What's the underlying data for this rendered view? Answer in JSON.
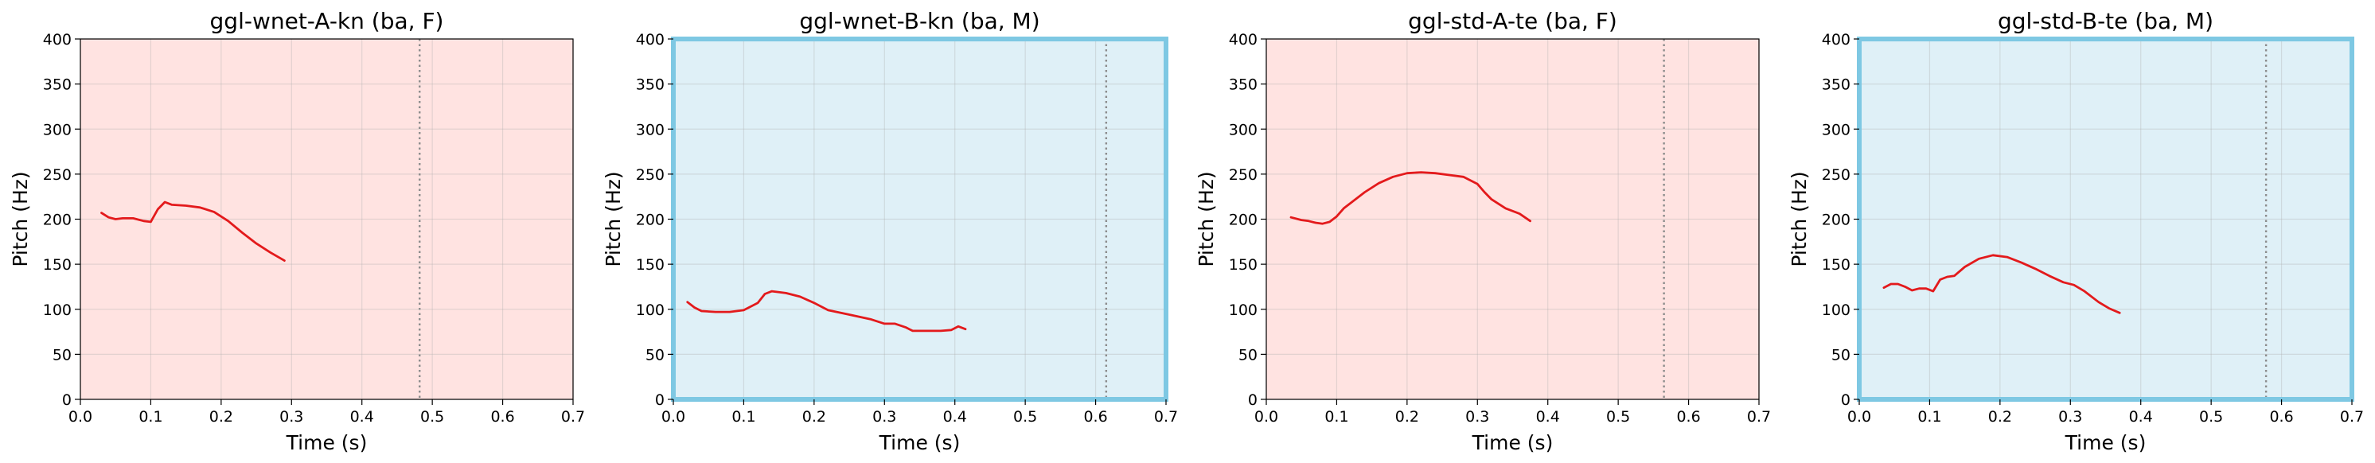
{
  "chart_data": [
    {
      "type": "line",
      "title": "ggl-wnet-A-kn (ba, F)",
      "xlabel": "Time (s)",
      "ylabel": "Pitch (Hz)",
      "xlim": [
        0,
        0.7
      ],
      "ylim": [
        0,
        400
      ],
      "xticks": [
        "0.0",
        "0.1",
        "0.2",
        "0.3",
        "0.4",
        "0.5",
        "0.6",
        "0.7"
      ],
      "yticks": [
        "0",
        "50",
        "100",
        "150",
        "200",
        "250",
        "300",
        "350",
        "400"
      ],
      "grid": true,
      "background": "#ffe3e1",
      "line_color": "#e31a1c",
      "vline_color": "#8c8c8c",
      "highlight_border": false,
      "vline_x": 0.482,
      "series": [
        {
          "x": [
            0.03,
            0.04,
            0.05,
            0.06,
            0.075,
            0.09,
            0.1,
            0.11,
            0.12,
            0.13,
            0.15,
            0.17,
            0.19,
            0.21,
            0.23,
            0.25,
            0.27,
            0.29
          ],
          "y": [
            207,
            202,
            200,
            201,
            201,
            198,
            197,
            211,
            219,
            216,
            215,
            213,
            208,
            198,
            185,
            173,
            163,
            154
          ]
        }
      ]
    },
    {
      "type": "line",
      "title": "ggl-wnet-B-kn (ba, M)",
      "xlabel": "Time (s)",
      "ylabel": "Pitch (Hz)",
      "xlim": [
        0,
        0.7
      ],
      "ylim": [
        0,
        400
      ],
      "xticks": [
        "0.0",
        "0.1",
        "0.2",
        "0.3",
        "0.4",
        "0.5",
        "0.6",
        "0.7"
      ],
      "yticks": [
        "0",
        "50",
        "100",
        "150",
        "200",
        "250",
        "300",
        "350",
        "400"
      ],
      "grid": true,
      "background": "#dff0f7",
      "line_color": "#e31a1c",
      "vline_color": "#8c8c8c",
      "highlight_border": true,
      "border_color": "#7ec8e3",
      "vline_x": 0.615,
      "series": [
        {
          "x": [
            0.02,
            0.03,
            0.04,
            0.06,
            0.08,
            0.1,
            0.12,
            0.13,
            0.14,
            0.16,
            0.18,
            0.2,
            0.22,
            0.25,
            0.28,
            0.3,
            0.315,
            0.33,
            0.34,
            0.36,
            0.38,
            0.395,
            0.405,
            0.415
          ],
          "y": [
            108,
            102,
            98,
            97,
            97,
            99,
            107,
            117,
            120,
            118,
            114,
            107,
            99,
            94,
            89,
            84,
            84,
            80,
            76,
            76,
            76,
            77,
            81,
            78
          ]
        }
      ]
    },
    {
      "type": "line",
      "title": "ggl-std-A-te (ba, F)",
      "xlabel": "Time (s)",
      "ylabel": "Pitch (Hz)",
      "xlim": [
        0,
        0.7
      ],
      "ylim": [
        0,
        400
      ],
      "xticks": [
        "0.0",
        "0.1",
        "0.2",
        "0.3",
        "0.4",
        "0.5",
        "0.6",
        "0.7"
      ],
      "yticks": [
        "0",
        "50",
        "100",
        "150",
        "200",
        "250",
        "300",
        "350",
        "400"
      ],
      "grid": true,
      "background": "#ffe3e1",
      "line_color": "#e31a1c",
      "vline_color": "#8c8c8c",
      "highlight_border": false,
      "vline_x": 0.565,
      "series": [
        {
          "x": [
            0.035,
            0.05,
            0.06,
            0.07,
            0.08,
            0.09,
            0.1,
            0.11,
            0.12,
            0.14,
            0.16,
            0.18,
            0.2,
            0.22,
            0.24,
            0.26,
            0.28,
            0.3,
            0.31,
            0.32,
            0.34,
            0.36,
            0.375
          ],
          "y": [
            202,
            199,
            198,
            196,
            195,
            197,
            203,
            212,
            218,
            230,
            240,
            247,
            251,
            252,
            251,
            249,
            247,
            239,
            230,
            222,
            212,
            206,
            198
          ]
        }
      ]
    },
    {
      "type": "line",
      "title": "ggl-std-B-te (ba, M)",
      "xlabel": "Time (s)",
      "ylabel": "Pitch (Hz)",
      "xlim": [
        0,
        0.7
      ],
      "ylim": [
        0,
        400
      ],
      "xticks": [
        "0.0",
        "0.1",
        "0.2",
        "0.3",
        "0.4",
        "0.5",
        "0.6",
        "0.7"
      ],
      "yticks": [
        "0",
        "50",
        "100",
        "150",
        "200",
        "250",
        "300",
        "350",
        "400"
      ],
      "grid": true,
      "background": "#dff0f7",
      "line_color": "#e31a1c",
      "vline_color": "#8c8c8c",
      "highlight_border": true,
      "border_color": "#7ec8e3",
      "vline_x": 0.578,
      "series": [
        {
          "x": [
            0.035,
            0.045,
            0.055,
            0.065,
            0.075,
            0.085,
            0.095,
            0.105,
            0.115,
            0.125,
            0.135,
            0.15,
            0.17,
            0.19,
            0.21,
            0.23,
            0.25,
            0.27,
            0.29,
            0.305,
            0.32,
            0.34,
            0.355,
            0.37
          ],
          "y": [
            124,
            128,
            128,
            125,
            121,
            123,
            123,
            120,
            133,
            136,
            137,
            147,
            156,
            160,
            158,
            152,
            145,
            137,
            130,
            127,
            120,
            108,
            101,
            96
          ]
        }
      ]
    }
  ]
}
